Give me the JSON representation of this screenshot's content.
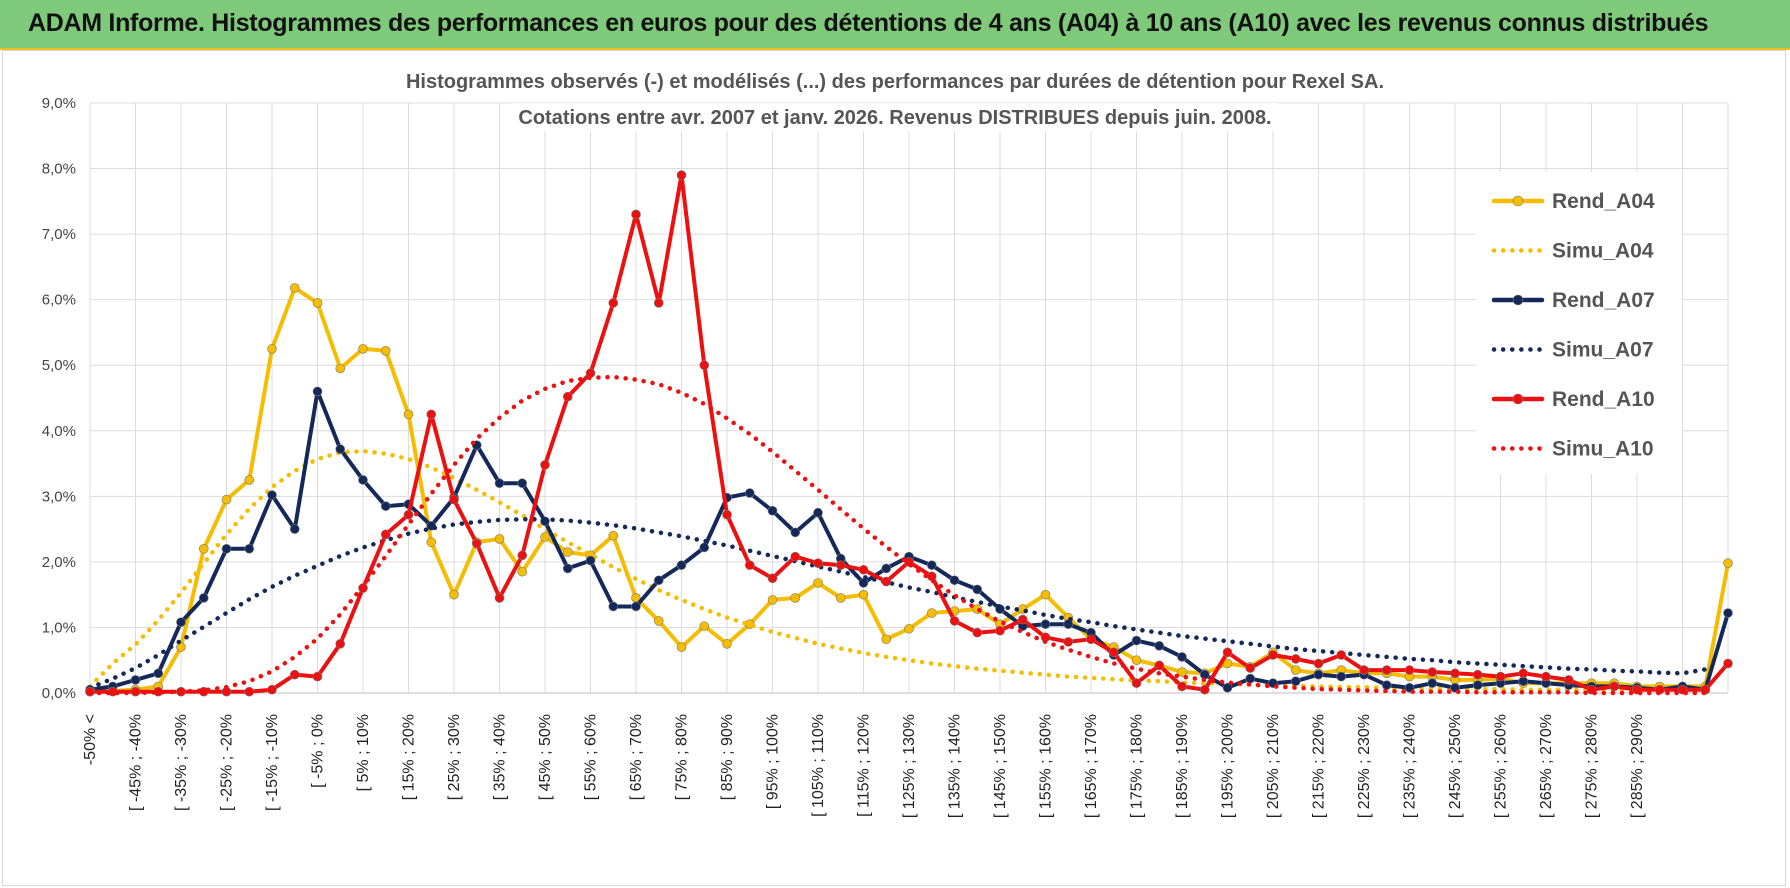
{
  "header": {
    "title": "ADAM Informe. Histogrammes des performances en euros pour des détentions de 4 ans (A04) à 10 ans (A10) avec les revenus connus distribués"
  },
  "chart_data": {
    "type": "line",
    "title": "Histogrammes observés (-) et modélisés (...) des performances par durées de détention pour Rexel SA.",
    "subtitle": "Cotations entre avr. 2007 et janv. 2026. Revenus DISTRIBUES depuis juin. 2008.",
    "xlabel": "",
    "ylabel": "",
    "ylim": [
      0,
      9
    ],
    "y_ticks": [
      "0,0%",
      "1,0%",
      "2,0%",
      "3,0%",
      "4,0%",
      "5,0%",
      "6,0%",
      "7,0%",
      "8,0%",
      "9,0%"
    ],
    "grid": true,
    "legend_position": "top-right",
    "x_tick_labels": [
      "-50% <",
      "[ -45% ; -40%",
      "[ -35% ; -30%",
      "[ -25% ; -20%",
      "[ -15% ; -10%",
      "[ -5% ; 0%",
      "[ 5% ; 10%",
      "[ 15% ; 20%",
      "[ 25% ; 30%",
      "[ 35% ; 40%",
      "[ 45% ; 50%",
      "[ 55% ; 60%",
      "[ 65% ; 70%",
      "[ 75% ; 80%",
      "[ 85% ; 90%",
      "[ 95% ; 100%",
      "[ 105% ; 110%",
      "[ 115% ; 120%",
      "[ 125% ; 130%",
      "[ 135% ; 140%",
      "[ 145% ; 150%",
      "[ 155% ; 160%",
      "[ 165% ; 170%",
      "[ 175% ; 180%",
      "[ 185% ; 190%",
      "[ 195% ; 200%",
      "[ 205% ; 210%",
      "[ 215% ; 220%",
      "[ 225% ; 230%",
      "[ 235% ; 240%",
      "[ 245% ; 250%",
      "[ 255% ; 260%",
      "[ 265% ; 270%",
      "[ 275% ; 280%",
      "[ 285% ; 290%"
    ],
    "series": [
      {
        "name": "Rend_A04",
        "color": "#f5bc00",
        "style": "solid",
        "values": [
          0.02,
          0.03,
          0.05,
          0.1,
          0.7,
          2.2,
          2.95,
          3.25,
          5.25,
          6.18,
          5.95,
          4.95,
          5.25,
          5.22,
          4.25,
          2.3,
          1.5,
          2.3,
          2.35,
          1.85,
          2.38,
          2.15,
          2.1,
          2.4,
          1.45,
          1.1,
          0.7,
          1.02,
          0.75,
          1.05,
          1.42,
          1.45,
          1.68,
          1.45,
          1.5,
          0.82,
          0.98,
          1.22,
          1.25,
          1.28,
          1.05,
          1.28,
          1.5,
          1.15,
          0.82,
          0.7,
          0.5,
          0.42,
          0.32,
          0.3,
          0.45,
          0.4,
          0.62,
          0.35,
          0.3,
          0.35,
          0.3,
          0.3,
          0.25,
          0.25,
          0.2,
          0.2,
          0.22,
          0.15,
          0.15,
          0.15,
          0.15,
          0.15,
          0.1,
          0.1,
          0.1,
          0.1,
          1.98
        ]
      },
      {
        "name": "Simu_A04",
        "color": "#f5bc00",
        "style": "dotted",
        "values": [
          0.1,
          0.45,
          0.74,
          1.11,
          1.53,
          1.98,
          2.42,
          2.81,
          3.14,
          3.39,
          3.57,
          3.67,
          3.69,
          3.65,
          3.57,
          3.44,
          3.28,
          3.1,
          2.91,
          2.71,
          2.5,
          2.3,
          2.11,
          1.92,
          1.74,
          1.57,
          1.42,
          1.28,
          1.15,
          1.04,
          0.93,
          0.84,
          0.75,
          0.68,
          0.61,
          0.55,
          0.5,
          0.45,
          0.41,
          0.37,
          0.34,
          0.31,
          0.28,
          0.25,
          0.23,
          0.21,
          0.19,
          0.18,
          0.16,
          0.15,
          0.14,
          0.13,
          0.12,
          0.11,
          0.1,
          0.09,
          0.09,
          0.08,
          0.07,
          0.07,
          0.06,
          0.06,
          0.06,
          0.05,
          0.05,
          0.05,
          0.04,
          0.04,
          0.04,
          0.04,
          0.03,
          0.03
        ]
      },
      {
        "name": "Rend_A07",
        "color": "#14285a",
        "style": "solid",
        "values": [
          0.05,
          0.1,
          0.2,
          0.3,
          1.08,
          1.45,
          2.2,
          2.2,
          3.02,
          2.5,
          4.6,
          3.72,
          3.25,
          2.85,
          2.88,
          2.55,
          2.98,
          3.78,
          3.2,
          3.2,
          2.62,
          1.9,
          2.02,
          1.32,
          1.32,
          1.72,
          1.95,
          2.22,
          2.98,
          3.05,
          2.78,
          2.45,
          2.75,
          2.05,
          1.68,
          1.9,
          2.08,
          1.95,
          1.72,
          1.58,
          1.28,
          1.02,
          1.05,
          1.05,
          0.92,
          0.58,
          0.8,
          0.72,
          0.55,
          0.28,
          0.08,
          0.22,
          0.15,
          0.18,
          0.28,
          0.25,
          0.28,
          0.12,
          0.08,
          0.15,
          0.08,
          0.12,
          0.15,
          0.18,
          0.15,
          0.12,
          0.1,
          0.1,
          0.08,
          0.05,
          0.1,
          0.05,
          1.22
        ]
      },
      {
        "name": "Simu_A07",
        "color": "#14285a",
        "style": "dotted",
        "values": [
          0.08,
          0.22,
          0.38,
          0.58,
          0.8,
          1.01,
          1.22,
          1.43,
          1.62,
          1.79,
          1.94,
          2.09,
          2.22,
          2.33,
          2.43,
          2.51,
          2.57,
          2.61,
          2.64,
          2.65,
          2.65,
          2.63,
          2.6,
          2.56,
          2.51,
          2.45,
          2.39,
          2.32,
          2.25,
          2.17,
          2.09,
          2.01,
          1.93,
          1.85,
          1.77,
          1.69,
          1.61,
          1.54,
          1.46,
          1.39,
          1.32,
          1.26,
          1.19,
          1.13,
          1.08,
          1.02,
          0.97,
          0.92,
          0.87,
          0.83,
          0.79,
          0.75,
          0.71,
          0.67,
          0.64,
          0.61,
          0.58,
          0.55,
          0.52,
          0.5,
          0.47,
          0.45,
          0.43,
          0.41,
          0.39,
          0.37,
          0.36,
          0.34,
          0.33,
          0.31,
          0.3,
          0.36
        ]
      },
      {
        "name": "Rend_A10",
        "color": "#ec1010",
        "style": "solid",
        "values": [
          0.02,
          0.02,
          0.02,
          0.02,
          0.02,
          0.02,
          0.02,
          0.02,
          0.05,
          0.28,
          0.25,
          0.75,
          1.6,
          2.42,
          2.72,
          4.25,
          2.95,
          2.28,
          1.45,
          2.1,
          3.48,
          4.52,
          4.88,
          5.95,
          7.3,
          5.95,
          7.9,
          5.0,
          2.72,
          1.95,
          1.75,
          2.08,
          1.98,
          1.95,
          1.88,
          1.7,
          2.0,
          1.78,
          1.1,
          0.92,
          0.95,
          1.12,
          0.85,
          0.78,
          0.82,
          0.62,
          0.15,
          0.42,
          0.1,
          0.05,
          0.62,
          0.38,
          0.58,
          0.52,
          0.45,
          0.58,
          0.35,
          0.35,
          0.35,
          0.32,
          0.3,
          0.28,
          0.25,
          0.3,
          0.25,
          0.2,
          0.05,
          0.1,
          0.05,
          0.05,
          0.05,
          0.05,
          0.45
        ]
      },
      {
        "name": "Simu_A10",
        "color": "#ec1010",
        "style": "dotted",
        "values": [
          0.0,
          0.0,
          0.0,
          0.01,
          0.02,
          0.04,
          0.09,
          0.18,
          0.33,
          0.55,
          0.83,
          1.2,
          1.63,
          2.09,
          2.57,
          3.04,
          3.48,
          3.88,
          4.2,
          4.46,
          4.64,
          4.76,
          4.81,
          4.82,
          4.78,
          4.71,
          4.58,
          4.41,
          4.19,
          3.95,
          3.68,
          3.39,
          3.1,
          2.8,
          2.51,
          2.23,
          1.97,
          1.72,
          1.49,
          1.28,
          1.09,
          0.93,
          0.78,
          0.66,
          0.55,
          0.45,
          0.37,
          0.3,
          0.25,
          0.2,
          0.16,
          0.13,
          0.1,
          0.08,
          0.06,
          0.05,
          0.04,
          0.03,
          0.02,
          0.02,
          0.02,
          0.01,
          0.01,
          0.01,
          0.01,
          0.01,
          0.0,
          0.0,
          0.0,
          0.0,
          0.0,
          0.0
        ]
      }
    ]
  }
}
